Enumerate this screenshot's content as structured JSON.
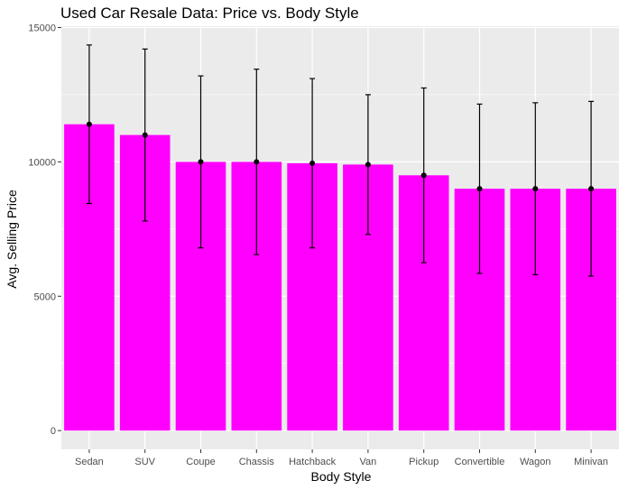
{
  "chart_data": {
    "type": "bar",
    "title": "Used Car Resale Data: Price vs. Body Style",
    "xlabel": "Body Style",
    "ylabel": "Avg. Selling Price",
    "categories": [
      "Sedan",
      "SUV",
      "Coupe",
      "Chassis",
      "Hatchback",
      "Van",
      "Pickup",
      "Convertible",
      "Wagon",
      "Minivan"
    ],
    "values": [
      11400,
      11000,
      10000,
      10000,
      9950,
      9900,
      9500,
      9000,
      9000,
      9000
    ],
    "error_upper": [
      14350,
      14200,
      13200,
      13450,
      13100,
      12500,
      12750,
      12150,
      12200,
      12250
    ],
    "error_lower": [
      8450,
      7800,
      6800,
      6550,
      6800,
      7300,
      6250,
      5850,
      5800,
      5750
    ],
    "ylim": [
      -700,
      15050
    ],
    "yticks": [
      0,
      5000,
      10000,
      15000
    ],
    "bar_color": "#FF00FF",
    "panel_background": "#EBEBEB",
    "grid_color": "#FFFFFF",
    "grid": true,
    "legend": "none"
  }
}
